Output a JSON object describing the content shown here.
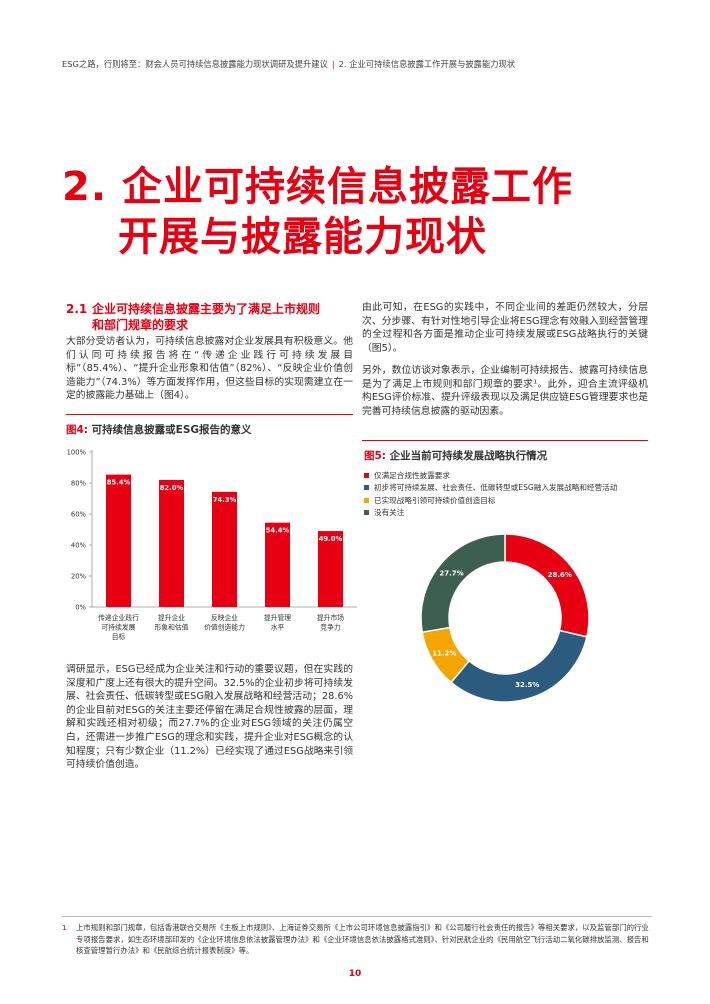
{
  "header": {
    "left": "ESG之路，行则将至：财会人员可持续信息披露能力现状调研及提升建议",
    "separator": "|",
    "right": "2. 企业可持续信息披露工作开展与披露能力现状"
  },
  "title": {
    "line1": "2. 企业可持续信息披露工作",
    "line2": "开展与披露能力现状"
  },
  "section": {
    "number": "2.1",
    "heading_line1": "企业可持续信息披露主要为了满足上市规则",
    "heading_line2": "和部门规章的要求"
  },
  "paragraphs": {
    "p1": "大部分受访者认为，可持续信息披露对企业发展具有积极意义。他们认同可持续报告将在“传递企业践行可持续发展目标”（85.4%）、“提升企业形象和估值”（82%）、“反映企业价值创造能力”（74.3%）等方面发挥作用，但这些目标的实现需建立在一定的披露能力基础上（图4）。",
    "p2": "调研显示，ESG已经成为企业关注和行动的重要议题，但在实践的深度和广度上还有很大的提升空间。32.5%的企业初步将可持续发展、社会责任、低碳转型或ESG融入发展战略和经营活动；28.6%的企业目前对ESG的关注主要还停留在满足合规性披露的层面，理解和实践还相对初级；而27.7%的企业对ESG领域的关注仍属空白，还需进一步推广ESG的理念和实践，提升企业对ESG概念的认知程度；只有少数企业（11.2%）已经实现了通过ESG战略来引领可持续价值创造。",
    "p3": "由此可知，在ESG的实践中，不同企业间的差距仍然较大，分层次、分步骤、有针对性地引导企业将ESG理念有效融入到经营管理的全过程和各方面是推动企业可持续发展或ESG战略执行的关键（图5）。",
    "p4": "另外，数位访谈对象表示，企业编制可持续报告、披露可持续信息是为了满足上市规则和部门规章的要求¹。此外，迎合主流评级机构ESG评价标准、提升评级表现以及满足供应链ESG管理要求也是完善可持续信息披露的驱动因素。"
  },
  "figure4": {
    "label": "图4:",
    "title": "可持续信息披露或ESG报告的意义"
  },
  "figure5": {
    "label": "图5:",
    "title": "企业当前可持续发展战略执行情况"
  },
  "colors": {
    "accent": "#e60012",
    "bar": "#e60012",
    "pie": [
      "#e60012",
      "#2b5b7e",
      "#f5a500",
      "#3d5f4f"
    ]
  },
  "chart_data": [
    {
      "type": "bar",
      "title": "可持续信息披露或ESG报告的意义",
      "categories": [
        [
          "传递企业践行",
          "可持续发展",
          "目标"
        ],
        [
          "提升企业",
          "形象和估值"
        ],
        [
          "反映企业",
          "价值创造能力"
        ],
        [
          "提升管理",
          "水平"
        ],
        [
          "提升市场",
          "竞争力"
        ]
      ],
      "values": [
        85.4,
        82.0,
        74.3,
        54.4,
        49.0
      ],
      "value_labels": [
        "85.4%",
        "82.0%",
        "74.3%",
        "54.4%",
        "49.0%"
      ],
      "ylim": [
        0,
        100
      ],
      "yticks": [
        0,
        20,
        40,
        60,
        80,
        100
      ],
      "ytick_labels": [
        "0%",
        "20%",
        "40%",
        "60%",
        "80%",
        "100%"
      ],
      "grid": false
    },
    {
      "type": "pie",
      "title": "企业当前可持续发展战略执行情况",
      "labels": [
        "仅满足合规性披露要求",
        "初步将可持续发展、社会责任、低碳转型或ESG融入发展战略和经营活动",
        "已实现战略引领可持续价值创造目标",
        "没有关注"
      ],
      "values": [
        28.6,
        32.5,
        11.2,
        27.7
      ],
      "value_labels": [
        "28.6%",
        "32.5%",
        "11.2%",
        "27.7%"
      ],
      "legend": "top"
    }
  ],
  "footnote": {
    "number": "1",
    "text": "上市规则和部门规章，包括香港联合交易所《主板上市规则》、上海证券交易所《上市公司环境信息披露指引》和《公司履行社会责任的报告》等相关要求，以及监管部门的行业专项报告要求，如生态环境部印发的《企业环境信息依法披露管理办法》和《企业环境信息依法披露格式准则》、针对民航企业的《民用航空飞行活动二氧化碳排放监测、报告和核查管理暂行办法》和《民航综合统计报表制度》等。"
  },
  "page_number": "10"
}
